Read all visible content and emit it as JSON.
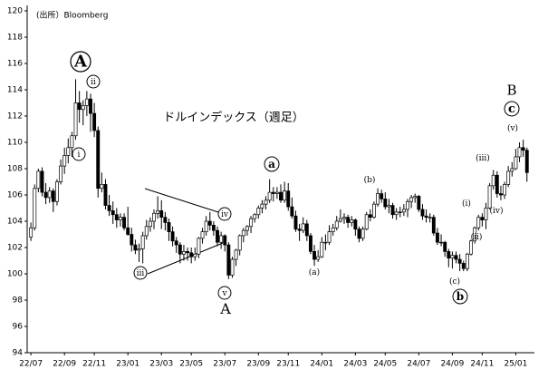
{
  "chart_data": {
    "type": "candlestick",
    "title": "ドルインデックス（週足）",
    "source": "(出所）Bloomberg",
    "up_color": "#ffffff",
    "down_color": "#000000",
    "edge_color": "#000000",
    "ylim": [
      94,
      120
    ],
    "yticks": [
      94,
      96,
      98,
      100,
      102,
      104,
      106,
      108,
      110,
      112,
      114,
      116,
      118,
      120
    ],
    "xlim": [
      -1,
      135
    ],
    "xticks": [
      {
        "value": 0,
        "label": "22/07"
      },
      {
        "value": 9,
        "label": "22/09"
      },
      {
        "value": 17,
        "label": "22/11"
      },
      {
        "value": 26,
        "label": "23/01"
      },
      {
        "value": 35,
        "label": "23/03"
      },
      {
        "value": 43,
        "label": "23/05"
      },
      {
        "value": 52,
        "label": "23/07"
      },
      {
        "value": 61,
        "label": "23/09"
      },
      {
        "value": 69,
        "label": "23/11"
      },
      {
        "value": 78,
        "label": "24/01"
      },
      {
        "value": 87,
        "label": "24/03"
      },
      {
        "value": 95,
        "label": "24/05"
      },
      {
        "value": 104,
        "label": "24/07"
      },
      {
        "value": 113,
        "label": "24/09"
      },
      {
        "value": 121,
        "label": "24/11"
      },
      {
        "value": 130,
        "label": "25/01"
      }
    ],
    "ohlc": [
      [
        102.8,
        103.9,
        102.5,
        103.5
      ],
      [
        103.5,
        106.8,
        103.3,
        106.5
      ],
      [
        106.5,
        108.0,
        106.2,
        107.8
      ],
      [
        107.8,
        108.1,
        105.9,
        106.2
      ],
      [
        106.2,
        106.9,
        105.3,
        105.8
      ],
      [
        105.8,
        106.6,
        105.4,
        106.3
      ],
      [
        106.3,
        106.5,
        104.7,
        105.5
      ],
      [
        105.5,
        107.2,
        105.2,
        107.0
      ],
      [
        107.0,
        108.7,
        106.8,
        108.2
      ],
      [
        108.2,
        109.6,
        107.6,
        109.0
      ],
      [
        109.0,
        110.3,
        108.4,
        109.6
      ],
      [
        109.6,
        110.8,
        108.9,
        110.5
      ],
      [
        110.5,
        114.8,
        110.2,
        113.0
      ],
      [
        113.0,
        113.9,
        111.5,
        112.5
      ],
      [
        112.5,
        113.2,
        111.3,
        112.8
      ],
      [
        112.8,
        113.9,
        112.0,
        113.3
      ],
      [
        113.3,
        113.7,
        110.8,
        112.2
      ],
      [
        112.2,
        113.0,
        110.4,
        110.9
      ],
      [
        110.9,
        111.2,
        105.8,
        106.5
      ],
      [
        106.5,
        107.7,
        106.2,
        106.8
      ],
      [
        106.8,
        107.2,
        104.9,
        105.2
      ],
      [
        105.2,
        106.0,
        104.4,
        104.8
      ],
      [
        104.8,
        105.5,
        103.8,
        104.5
      ],
      [
        104.5,
        105.0,
        103.5,
        104.1
      ],
      [
        104.1,
        104.6,
        103.6,
        104.3
      ],
      [
        104.3,
        104.6,
        103.3,
        103.5
      ],
      [
        103.5,
        105.1,
        102.9,
        103.0
      ],
      [
        103.0,
        103.5,
        101.7,
        102.2
      ],
      [
        102.2,
        102.6,
        101.5,
        101.8
      ],
      [
        101.8,
        102.3,
        100.9,
        101.9
      ],
      [
        101.9,
        103.2,
        100.8,
        102.9
      ],
      [
        102.9,
        104.1,
        102.6,
        103.6
      ],
      [
        103.6,
        104.3,
        103.2,
        104.0
      ],
      [
        104.0,
        104.9,
        103.4,
        104.6
      ],
      [
        104.6,
        105.9,
        104.2,
        104.8
      ],
      [
        104.8,
        105.6,
        103.4,
        104.3
      ],
      [
        104.3,
        104.7,
        103.3,
        103.9
      ],
      [
        103.9,
        104.2,
        102.5,
        103.2
      ],
      [
        103.2,
        103.6,
        102.1,
        102.5
      ],
      [
        102.5,
        102.8,
        101.6,
        102.2
      ],
      [
        102.2,
        102.4,
        100.8,
        101.5
      ],
      [
        101.5,
        102.2,
        101.0,
        101.7
      ],
      [
        101.7,
        102.0,
        101.0,
        101.6
      ],
      [
        101.6,
        102.0,
        100.8,
        101.3
      ],
      [
        101.3,
        102.0,
        101.0,
        101.5
      ],
      [
        101.5,
        102.8,
        101.2,
        102.7
      ],
      [
        102.7,
        103.5,
        102.3,
        103.2
      ],
      [
        103.2,
        104.4,
        102.9,
        104.0
      ],
      [
        104.0,
        104.7,
        103.3,
        103.7
      ],
      [
        103.7,
        104.0,
        102.9,
        103.3
      ],
      [
        103.3,
        103.6,
        102.1,
        102.4
      ],
      [
        102.4,
        103.2,
        101.9,
        102.9
      ],
      [
        102.9,
        103.0,
        101.7,
        102.2
      ],
      [
        102.2,
        102.4,
        99.6,
        99.9
      ],
      [
        99.9,
        101.3,
        99.7,
        101.1
      ],
      [
        101.1,
        101.9,
        100.6,
        101.8
      ],
      [
        101.8,
        103.0,
        101.4,
        102.9
      ],
      [
        102.9,
        103.5,
        102.4,
        103.3
      ],
      [
        103.3,
        103.7,
        102.9,
        103.6
      ],
      [
        103.6,
        104.4,
        103.1,
        104.2
      ],
      [
        104.2,
        104.6,
        103.9,
        104.5
      ],
      [
        104.5,
        105.2,
        104.2,
        105.0
      ],
      [
        105.0,
        105.6,
        104.6,
        105.3
      ],
      [
        105.3,
        105.9,
        104.9,
        105.6
      ],
      [
        105.6,
        107.2,
        105.4,
        106.2
      ],
      [
        106.2,
        106.6,
        105.5,
        106.1
      ],
      [
        106.1,
        106.6,
        105.7,
        106.2
      ],
      [
        106.2,
        106.8,
        105.4,
        105.6
      ],
      [
        105.6,
        107.0,
        105.4,
        106.3
      ],
      [
        106.3,
        106.9,
        104.8,
        105.1
      ],
      [
        105.1,
        105.8,
        104.2,
        104.4
      ],
      [
        104.4,
        104.8,
        103.2,
        103.4
      ],
      [
        103.4,
        103.8,
        102.5,
        103.3
      ],
      [
        103.3,
        104.3,
        103.1,
        103.8
      ],
      [
        103.8,
        104.1,
        102.5,
        102.9
      ],
      [
        102.9,
        103.1,
        101.5,
        101.7
      ],
      [
        101.7,
        102.2,
        100.6,
        101.1
      ],
      [
        101.1,
        101.8,
        100.9,
        101.3
      ],
      [
        101.3,
        102.8,
        101.2,
        102.4
      ],
      [
        102.4,
        103.0,
        101.8,
        102.4
      ],
      [
        102.4,
        103.7,
        102.2,
        103.2
      ],
      [
        103.2,
        103.8,
        102.9,
        103.5
      ],
      [
        103.5,
        104.4,
        103.3,
        104.0
      ],
      [
        104.0,
        104.9,
        103.9,
        104.2
      ],
      [
        104.2,
        104.6,
        103.8,
        104.3
      ],
      [
        104.3,
        104.5,
        103.5,
        103.9
      ],
      [
        103.9,
        104.4,
        103.6,
        104.1
      ],
      [
        104.1,
        104.2,
        102.9,
        103.4
      ],
      [
        103.4,
        103.6,
        102.4,
        102.7
      ],
      [
        102.7,
        103.6,
        102.5,
        103.4
      ],
      [
        103.4,
        104.7,
        103.3,
        104.5
      ],
      [
        104.5,
        104.9,
        104.0,
        104.3
      ],
      [
        104.3,
        105.5,
        104.2,
        105.3
      ],
      [
        105.3,
        106.5,
        105.1,
        106.1
      ],
      [
        106.1,
        106.4,
        105.4,
        105.7
      ],
      [
        105.7,
        106.2,
        104.9,
        105.1
      ],
      [
        105.1,
        105.7,
        104.6,
        105.2
      ],
      [
        105.2,
        105.4,
        104.2,
        104.5
      ],
      [
        104.5,
        105.0,
        104.1,
        104.7
      ],
      [
        104.7,
        105.1,
        104.3,
        104.7
      ],
      [
        104.7,
        105.3,
        104.4,
        104.9
      ],
      [
        104.9,
        105.7,
        104.3,
        105.5
      ],
      [
        105.5,
        106.0,
        105.0,
        105.8
      ],
      [
        105.8,
        106.1,
        105.4,
        105.9
      ],
      [
        105.9,
        106.0,
        104.7,
        104.9
      ],
      [
        104.9,
        105.3,
        104.1,
        104.4
      ],
      [
        104.4,
        104.9,
        103.9,
        104.3
      ],
      [
        104.3,
        104.6,
        103.9,
        104.3
      ],
      [
        104.3,
        104.5,
        102.9,
        103.1
      ],
      [
        103.1,
        103.5,
        102.2,
        102.4
      ],
      [
        102.4,
        103.0,
        102.1,
        102.4
      ],
      [
        102.4,
        102.5,
        101.3,
        101.7
      ],
      [
        101.7,
        101.9,
        100.5,
        101.2
      ],
      [
        101.2,
        101.7,
        100.4,
        101.4
      ],
      [
        101.4,
        101.7,
        100.8,
        101.1
      ],
      [
        101.1,
        101.5,
        100.2,
        100.8
      ],
      [
        100.8,
        101.0,
        100.2,
        100.4
      ],
      [
        100.4,
        101.6,
        100.2,
        101.5
      ],
      [
        101.5,
        102.6,
        101.4,
        102.5
      ],
      [
        102.5,
        103.6,
        102.3,
        103.5
      ],
      [
        103.5,
        104.5,
        103.3,
        104.3
      ],
      [
        104.3,
        104.6,
        103.6,
        104.1
      ],
      [
        104.1,
        105.4,
        103.4,
        105.0
      ],
      [
        105.0,
        106.9,
        104.9,
        106.7
      ],
      [
        106.7,
        107.9,
        106.4,
        107.5
      ],
      [
        107.5,
        107.8,
        105.8,
        106.1
      ],
      [
        106.1,
        106.7,
        105.6,
        106.0
      ],
      [
        106.0,
        107.0,
        105.7,
        106.8
      ],
      [
        106.8,
        108.2,
        106.6,
        107.8
      ],
      [
        107.8,
        108.5,
        107.4,
        108.0
      ],
      [
        108.0,
        109.5,
        107.9,
        108.9
      ],
      [
        108.9,
        110.0,
        108.5,
        109.6
      ],
      [
        109.6,
        110.2,
        108.9,
        109.4
      ],
      [
        109.4,
        109.6,
        107.0,
        107.7
      ]
    ],
    "annotations": [
      {
        "text": "A",
        "circled": true
      },
      {
        "text": "ii",
        "circled": true
      },
      {
        "text": "i",
        "circled": true
      },
      {
        "text": "iv",
        "circled": true
      },
      {
        "text": "iii",
        "circled": true
      },
      {
        "text": "v",
        "circled": true
      },
      {
        "text": "A",
        "circled": false
      },
      {
        "text": "a",
        "circled": true
      },
      {
        "text": "(a)",
        "circled": false
      },
      {
        "text": "(b)",
        "circled": false
      },
      {
        "text": "(c)",
        "circled": false
      },
      {
        "text": "b",
        "circled": true
      },
      {
        "text": "(i)",
        "circled": false
      },
      {
        "text": "(ii)",
        "circled": false
      },
      {
        "text": "(iii)",
        "circled": false
      },
      {
        "text": "(iv)",
        "circled": false
      },
      {
        "text": "(v)",
        "circled": false
      },
      {
        "text": "c",
        "circled": true
      },
      {
        "text": "B",
        "circled": false
      }
    ]
  }
}
